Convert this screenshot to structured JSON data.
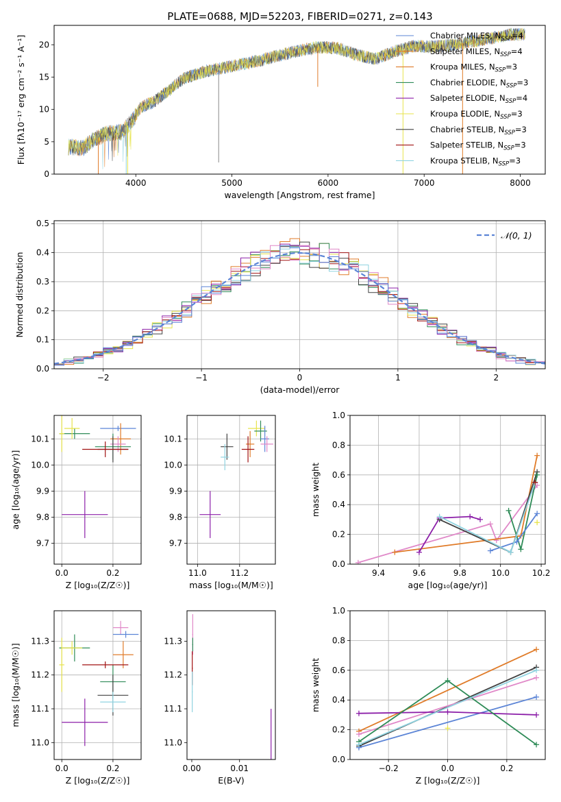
{
  "title": "PLATE=0688, MJD=52203, FIBERID=0271, z=0.143",
  "colors": [
    "#5b84d6",
    "#e07b28",
    "#2e8b57",
    "#8b1ea8",
    "#e7e34a",
    "#404040",
    "#a01010",
    "#8fd3e0",
    "#e088c8",
    "#8a8a8a"
  ],
  "chart_data": [
    {
      "id": "spectrum",
      "type": "line",
      "xlabel": "wavelength [Angstrom, rest frame]",
      "ylabel": "Flux [fλ10⁻¹⁷ erg cm⁻² s⁻¹ A⁻¹]",
      "xlim": [
        3150,
        8260
      ],
      "ylim": [
        0,
        23
      ],
      "xticks": [
        4000,
        5000,
        6000,
        7000,
        8000
      ],
      "yticks": [
        0,
        5,
        10,
        15,
        20
      ],
      "grid": false,
      "legend_position": "right",
      "continuum": {
        "x": [
          3300,
          3450,
          3550,
          3700,
          3850,
          3950,
          4050,
          4200,
          4350,
          4500,
          4700,
          4900,
          5100,
          5300,
          5500,
          5700,
          5900,
          6100,
          6300,
          6500,
          6700,
          6900,
          7100,
          7300,
          7500,
          7700,
          7900,
          8050
        ],
        "y": [
          4.2,
          4.0,
          5.2,
          6.3,
          6.5,
          8.0,
          10.3,
          11.3,
          13.0,
          14.8,
          15.8,
          16.4,
          17.0,
          17.6,
          18.4,
          19.1,
          19.6,
          19.5,
          18.4,
          17.8,
          19.0,
          19.8,
          19.7,
          20.0,
          20.5,
          21.0,
          21.6,
          21.6
        ]
      },
      "series": [
        {
          "name": "Chabrier MILES, N_SSP=4",
          "color_index": 0
        },
        {
          "name": "Salpeter MILES, N_SSP=4",
          "color_index": 1
        },
        {
          "name": "Kroupa MILES, N_SSP=3",
          "color_index": 1
        },
        {
          "name": "Chabrier ELODIE, N_SSP=3",
          "color_index": 2
        },
        {
          "name": "Salpeter ELODIE, N_SSP=4",
          "color_index": 3
        },
        {
          "name": "Kroupa ELODIE, N_SSP=3",
          "color_index": 4
        },
        {
          "name": "Chabrier STELIB, N_SSP=3",
          "color_index": 5
        },
        {
          "name": "Salpeter STELIB, N_SSP=3",
          "color_index": 6
        },
        {
          "name": "Kroupa STELIB, N_SSP=3",
          "color_index": 7
        }
      ]
    },
    {
      "id": "residuals",
      "type": "histogram",
      "xlabel": "(data-model)/error",
      "ylabel": "Normed distribution",
      "xlim": [
        -2.5,
        2.5
      ],
      "ylim": [
        0,
        0.51
      ],
      "xticks": [
        -2,
        -1,
        0,
        1,
        2
      ],
      "yticks": [
        0.0,
        0.1,
        0.2,
        0.3,
        0.4,
        0.5
      ],
      "grid": true,
      "legend_position": "top-right",
      "bin_width": 0.1,
      "bin_start": -2.5,
      "reference": {
        "name": "𝒩(0, 1)",
        "mean": 0,
        "sigma": 1
      }
    },
    {
      "id": "age_vs_Z",
      "type": "errorbar",
      "xlabel": "Z [log₁₀(Z/Z☉)]",
      "ylabel": "age  [log₁₀(age/yr)]",
      "xlim": [
        -0.03,
        0.31
      ],
      "ylim": [
        9.62,
        10.19
      ],
      "xticks": [
        0.0,
        0.2
      ],
      "yticks": [
        9.7,
        9.8,
        9.9,
        10.0,
        10.1
      ],
      "grid": true,
      "points": [
        {
          "x": 0.05,
          "y": 10.12,
          "xerr": 0.06,
          "yerr": 0.02,
          "c": 2
        },
        {
          "x": 0.04,
          "y": 10.14,
          "xerr": 0.03,
          "yerr": 0.04,
          "c": 4
        },
        {
          "x": 0.0,
          "y": 10.12,
          "xerr": 0.01,
          "yerr": 0.07,
          "c": 4
        },
        {
          "x": 0.22,
          "y": 10.14,
          "xerr": 0.07,
          "yerr": 0.01,
          "c": 0
        },
        {
          "x": 0.23,
          "y": 10.1,
          "xerr": 0.04,
          "yerr": 0.06,
          "c": 1
        },
        {
          "x": 0.22,
          "y": 10.08,
          "xerr": 0.03,
          "yerr": 0.03,
          "c": 8
        },
        {
          "x": 0.2,
          "y": 10.07,
          "xerr": 0.07,
          "yerr": 0.05,
          "c": 2
        },
        {
          "x": 0.2,
          "y": 10.06,
          "xerr": 0.06,
          "yerr": 0.05,
          "c": 5
        },
        {
          "x": 0.17,
          "y": 10.06,
          "xerr": 0.09,
          "yerr": 0.03,
          "c": 6
        },
        {
          "x": 0.09,
          "y": 9.81,
          "xerr": 0.09,
          "yerr": 0.09,
          "c": 3
        }
      ]
    },
    {
      "id": "age_vs_mass",
      "type": "errorbar",
      "xlabel": "mass [log₁₀(M/M☉)]",
      "ylabel": "",
      "xlim": [
        10.95,
        11.37
      ],
      "ylim": [
        9.62,
        10.19
      ],
      "xticks": [
        11.0,
        11.2
      ],
      "yticks": [
        9.7,
        9.8,
        9.9,
        10.0,
        10.1
      ],
      "grid": true,
      "points": [
        {
          "x": 11.28,
          "y": 10.14,
          "xerr": 0.04,
          "yerr": 0.03,
          "c": 4
        },
        {
          "x": 11.3,
          "y": 10.13,
          "xerr": 0.03,
          "yerr": 0.04,
          "c": 2
        },
        {
          "x": 11.32,
          "y": 10.1,
          "xerr": 0.02,
          "yerr": 0.05,
          "c": 0
        },
        {
          "x": 11.33,
          "y": 10.08,
          "xerr": 0.03,
          "yerr": 0.03,
          "c": 8
        },
        {
          "x": 11.25,
          "y": 10.08,
          "xerr": 0.02,
          "yerr": 0.05,
          "c": 1
        },
        {
          "x": 11.14,
          "y": 10.07,
          "xerr": 0.03,
          "yerr": 0.05,
          "c": 5
        },
        {
          "x": 11.13,
          "y": 10.03,
          "xerr": 0.02,
          "yerr": 0.05,
          "c": 7
        },
        {
          "x": 11.24,
          "y": 10.06,
          "xerr": 0.03,
          "yerr": 0.05,
          "c": 6
        },
        {
          "x": 11.06,
          "y": 9.81,
          "xerr": 0.05,
          "yerr": 0.09,
          "c": 3
        }
      ]
    },
    {
      "id": "weight_vs_age",
      "type": "line",
      "xlabel": "age  [log₁₀(age/yr)]",
      "ylabel": "mass weight",
      "xlim": [
        9.26,
        10.22
      ],
      "ylim": [
        0.0,
        1.0
      ],
      "xticks": [
        9.4,
        9.6,
        9.8,
        10.0,
        10.2
      ],
      "yticks": [
        0.0,
        0.2,
        0.4,
        0.6,
        0.8,
        1.0
      ],
      "grid": true,
      "series": [
        {
          "c": 8,
          "x": [
            9.3,
            9.95,
            9.98,
            10.18
          ],
          "y": [
            0.01,
            0.27,
            0.16,
            0.53
          ]
        },
        {
          "c": 1,
          "x": [
            9.48,
            10.1,
            10.18
          ],
          "y": [
            0.08,
            0.19,
            0.73
          ]
        },
        {
          "c": 3,
          "x": [
            9.6,
            9.7,
            9.85,
            9.9
          ],
          "y": [
            0.08,
            0.31,
            0.32,
            0.3
          ]
        },
        {
          "c": 5,
          "x": [
            9.7,
            10.05,
            10.18
          ],
          "y": [
            0.3,
            0.08,
            0.62
          ]
        },
        {
          "c": 2,
          "x": [
            10.04,
            10.1,
            10.18
          ],
          "y": [
            0.36,
            0.1,
            0.6
          ]
        },
        {
          "c": 0,
          "x": [
            9.95,
            10.08,
            10.18
          ],
          "y": [
            0.09,
            0.15,
            0.34
          ]
        },
        {
          "c": 7,
          "x": [
            9.7,
            10.05,
            10.17
          ],
          "y": [
            0.32,
            0.08,
            0.55
          ]
        },
        {
          "c": 4,
          "x": [
            10.18
          ],
          "y": [
            0.28
          ]
        },
        {
          "c": 6,
          "x": [
            10.17
          ],
          "y": [
            0.55
          ]
        }
      ]
    },
    {
      "id": "mass_vs_Z",
      "type": "errorbar",
      "xlabel": "Z [log₁₀(Z/Z☉)]",
      "ylabel": "mass [log₁₀(M/M☉)]",
      "xlim": [
        -0.03,
        0.31
      ],
      "ylim": [
        10.95,
        11.39
      ],
      "xticks": [
        0.0,
        0.2
      ],
      "yticks": [
        11.0,
        11.1,
        11.2,
        11.3
      ],
      "grid": true,
      "points": [
        {
          "x": 0.23,
          "y": 11.34,
          "xerr": 0.03,
          "yerr": 0.02,
          "c": 8
        },
        {
          "x": 0.25,
          "y": 11.32,
          "xerr": 0.05,
          "yerr": 0.01,
          "c": 0
        },
        {
          "x": 0.24,
          "y": 11.26,
          "xerr": 0.04,
          "yerr": 0.04,
          "c": 1
        },
        {
          "x": 0.05,
          "y": 11.28,
          "xerr": 0.06,
          "yerr": 0.04,
          "c": 2
        },
        {
          "x": 0.04,
          "y": 11.28,
          "xerr": 0.04,
          "yerr": 0.02,
          "c": 4
        },
        {
          "x": 0.0,
          "y": 11.23,
          "xerr": 0.01,
          "yerr": 0.08,
          "c": 4
        },
        {
          "x": 0.2,
          "y": 11.18,
          "xerr": 0.05,
          "yerr": 0.05,
          "c": 2
        },
        {
          "x": 0.2,
          "y": 11.14,
          "xerr": 0.06,
          "yerr": 0.06,
          "c": 5
        },
        {
          "x": 0.17,
          "y": 11.23,
          "xerr": 0.09,
          "yerr": 0.01,
          "c": 6
        },
        {
          "x": 0.2,
          "y": 11.12,
          "xerr": 0.05,
          "yerr": 0.03,
          "c": 7
        },
        {
          "x": 0.09,
          "y": 11.06,
          "xerr": 0.09,
          "yerr": 0.07,
          "c": 3
        }
      ]
    },
    {
      "id": "mass_vs_ebv",
      "type": "errorbar",
      "xlabel": "E(B-V)",
      "ylabel": "",
      "xlim": [
        -0.001,
        0.0175
      ],
      "ylim": [
        10.95,
        11.39
      ],
      "xticks": [
        0.0,
        0.01
      ],
      "yticks": [
        11.0,
        11.1,
        11.2,
        11.3
      ],
      "grid": false,
      "points": [
        {
          "x": 0.0002,
          "y": 11.32,
          "xerr": 0.0001,
          "yerr": 0.06,
          "c": 8
        },
        {
          "x": 0.0002,
          "y": 11.29,
          "xerr": 0.0001,
          "yerr": 0.02,
          "c": 2
        },
        {
          "x": 0.0001,
          "y": 11.22,
          "xerr": 0.0001,
          "yerr": 0.05,
          "c": 6
        },
        {
          "x": 0.0001,
          "y": 11.15,
          "xerr": 0.0001,
          "yerr": 0.06,
          "c": 7
        },
        {
          "x": 0.0166,
          "y": 11.02,
          "xerr": 0.0,
          "yerr": 0.08,
          "c": 3
        }
      ]
    },
    {
      "id": "weight_vs_Z",
      "type": "line",
      "xlabel": "Z [log₁₀(Z/Z☉)]",
      "ylabel": "mass weight",
      "xlim": [
        -0.33,
        0.33
      ],
      "ylim": [
        0.0,
        1.0
      ],
      "xticks": [
        -0.2,
        0.0,
        0.2
      ],
      "yticks": [
        0.0,
        0.2,
        0.4,
        0.6,
        0.8,
        1.0
      ],
      "grid": true,
      "series": [
        {
          "c": 1,
          "x": [
            -0.3,
            0.3
          ],
          "y": [
            0.19,
            0.74
          ]
        },
        {
          "c": 5,
          "x": [
            -0.3,
            0.3
          ],
          "y": [
            0.09,
            0.62
          ]
        },
        {
          "c": 8,
          "x": [
            -0.3,
            0.3
          ],
          "y": [
            0.17,
            0.55
          ]
        },
        {
          "c": 0,
          "x": [
            -0.3,
            0.3
          ],
          "y": [
            0.08,
            0.42
          ]
        },
        {
          "c": 3,
          "x": [
            -0.3,
            0.0,
            0.3
          ],
          "y": [
            0.31,
            0.32,
            0.3
          ]
        },
        {
          "c": 2,
          "x": [
            -0.3,
            0.0,
            0.3
          ],
          "y": [
            0.12,
            0.53,
            0.1
          ]
        },
        {
          "c": 4,
          "x": [
            0.0
          ],
          "y": [
            0.21
          ]
        },
        {
          "c": 7,
          "x": [
            -0.3,
            0.3
          ],
          "y": [
            0.1,
            0.6
          ]
        }
      ]
    }
  ]
}
